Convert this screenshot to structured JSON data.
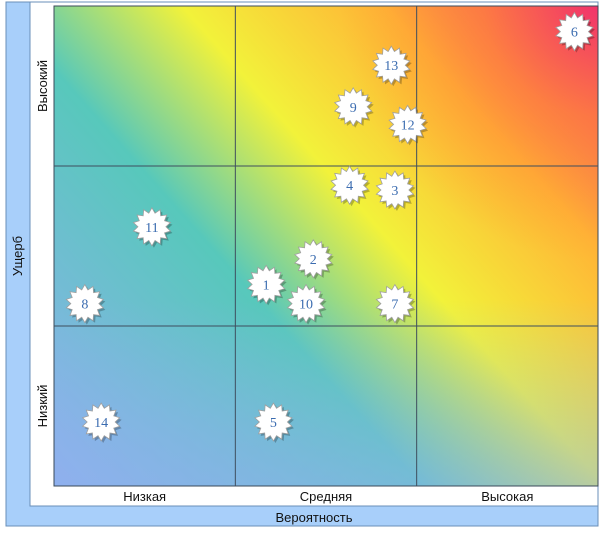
{
  "chart_data": {
    "type": "scatter",
    "title": "",
    "xlabel": "Вероятность",
    "ylabel": "Ущерб",
    "x_tick_labels": [
      "Низкая",
      "Средняя",
      "Высокая"
    ],
    "y_tick_labels": [
      "Низкий",
      "Высокий"
    ],
    "x_range": [
      0,
      3
    ],
    "y_range": [
      0,
      3
    ],
    "grid": true,
    "gradient_colors": {
      "low": "#8fb0ee",
      "teal": "#57c8bb",
      "yellow": "#f7f12a",
      "orange": "#ff9a2e",
      "high": "#f0306e"
    },
    "marker": "starburst",
    "points": [
      {
        "label": "1",
        "x": 1.17,
        "y": 1.26
      },
      {
        "label": "2",
        "x": 1.43,
        "y": 1.42
      },
      {
        "label": "3",
        "x": 1.88,
        "y": 1.85
      },
      {
        "label": "4",
        "x": 1.63,
        "y": 1.88
      },
      {
        "label": "5",
        "x": 1.21,
        "y": 0.4
      },
      {
        "label": "6",
        "x": 2.87,
        "y": 2.84
      },
      {
        "label": "7",
        "x": 1.88,
        "y": 1.14
      },
      {
        "label": "8",
        "x": 0.17,
        "y": 1.14
      },
      {
        "label": "9",
        "x": 1.65,
        "y": 2.37
      },
      {
        "label": "10",
        "x": 1.39,
        "y": 1.14
      },
      {
        "label": "11",
        "x": 0.54,
        "y": 1.62
      },
      {
        "label": "12",
        "x": 1.95,
        "y": 2.26
      },
      {
        "label": "13",
        "x": 1.86,
        "y": 2.63
      },
      {
        "label": "14",
        "x": 0.26,
        "y": 0.4
      }
    ]
  }
}
